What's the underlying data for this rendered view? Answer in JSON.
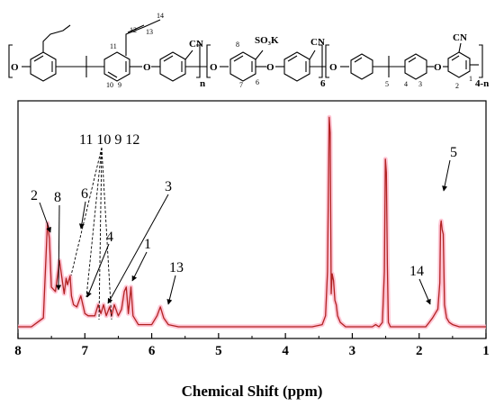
{
  "structure": {
    "sub_labels": {
      "cn": "CN",
      "so3k": "SO₃K",
      "o": "O",
      "n": "n",
      "six": "6",
      "four_n": "4-n",
      "atoms": [
        "1",
        "2",
        "3",
        "4",
        "5",
        "6",
        "7",
        "8",
        "9",
        "10",
        "11",
        "12",
        "13",
        "14"
      ]
    }
  },
  "chart_data": {
    "type": "line",
    "xlabel": "Chemical Shift (ppm)",
    "xlim": [
      8,
      1
    ],
    "x_ticks": [
      8,
      7,
      6,
      5,
      4,
      3,
      2,
      1
    ],
    "axis_reversed": true,
    "series": [
      {
        "color": "#b22222",
        "x": [
          8.0,
          7.8,
          7.62,
          7.56,
          7.53,
          7.5,
          7.44,
          7.38,
          7.31,
          7.28,
          7.26,
          7.22,
          7.2,
          7.17,
          7.12,
          7.06,
          7.0,
          6.95,
          6.85,
          6.8,
          6.76,
          6.72,
          6.68,
          6.63,
          6.6,
          6.56,
          6.5,
          6.45,
          6.41,
          6.38,
          6.35,
          6.31,
          6.28,
          6.2,
          6.0,
          5.92,
          5.87,
          5.82,
          5.75,
          5.6,
          5.0,
          4.5,
          4.0,
          3.6,
          3.45,
          3.4,
          3.37,
          3.345,
          3.33,
          3.315,
          3.3,
          3.28,
          3.26,
          3.24,
          3.22,
          3.18,
          3.1,
          2.9,
          2.7,
          2.65,
          2.6,
          2.55,
          2.52,
          2.505,
          2.49,
          2.475,
          2.46,
          2.43,
          2.3,
          2.0,
          1.9,
          1.85,
          1.8,
          1.76,
          1.72,
          1.69,
          1.68,
          1.67,
          1.655,
          1.64,
          1.62,
          1.59,
          1.55,
          1.5,
          1.4,
          1.2,
          1.0
        ],
        "y": [
          0.0,
          0.0,
          0.04,
          0.47,
          0.4,
          0.18,
          0.16,
          0.3,
          0.15,
          0.22,
          0.19,
          0.23,
          0.14,
          0.1,
          0.09,
          0.14,
          0.06,
          0.05,
          0.05,
          0.1,
          0.06,
          0.1,
          0.05,
          0.09,
          0.05,
          0.1,
          0.05,
          0.08,
          0.16,
          0.18,
          0.06,
          0.18,
          0.05,
          0.01,
          0.01,
          0.05,
          0.09,
          0.04,
          0.01,
          0.0,
          0.0,
          0.0,
          0.0,
          0.0,
          0.01,
          0.05,
          0.25,
          0.95,
          0.88,
          0.15,
          0.24,
          0.21,
          0.12,
          0.1,
          0.05,
          0.02,
          0.0,
          0.0,
          0.0,
          0.01,
          0.0,
          0.02,
          0.25,
          0.76,
          0.7,
          0.28,
          0.02,
          0.0,
          0.0,
          0.0,
          0.0,
          0.02,
          0.04,
          0.06,
          0.08,
          0.2,
          0.46,
          0.48,
          0.44,
          0.42,
          0.1,
          0.04,
          0.02,
          0.01,
          0.0,
          0.0,
          0.0
        ]
      }
    ],
    "annotations": [
      {
        "text": "2",
        "x": 7.56
      },
      {
        "text": "8",
        "x": 7.5
      },
      {
        "text": "6",
        "x": 7.22
      },
      {
        "text": "11 10 9 12",
        "x": 7.13
      },
      {
        "text": "4",
        "x": 7.04
      },
      {
        "text": "3",
        "x": 6.78
      },
      {
        "text": "1",
        "x": 6.42
      },
      {
        "text": "13",
        "x": 5.87
      },
      {
        "text": "14",
        "x": 1.8
      },
      {
        "text": "5",
        "x": 1.67
      }
    ]
  }
}
